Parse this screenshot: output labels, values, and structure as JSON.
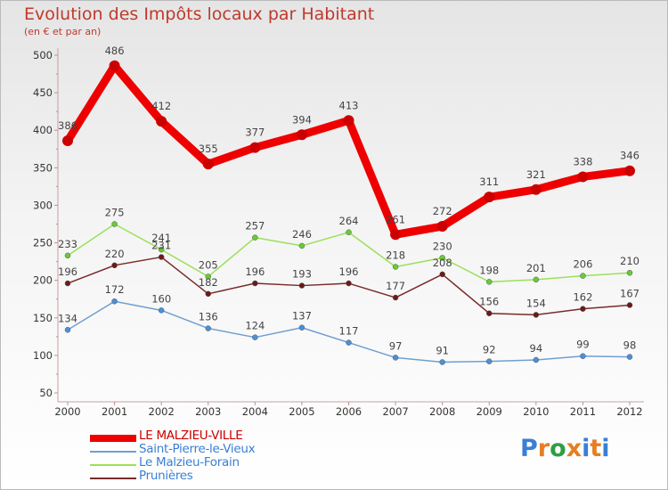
{
  "title": "Evolution des Impôts locaux par Habitant",
  "subtitle": "(en € et par an)",
  "brand": {
    "text": "Proxiti",
    "colors": [
      "#3a7fd5",
      "#e67e22",
      "#2e9e45",
      "#e67e22",
      "#3a7fd5",
      "#e67e22",
      "#3a7fd5"
    ]
  },
  "chart_data": {
    "type": "line",
    "x": [
      "2000",
      "2001",
      "2002",
      "2003",
      "2004",
      "2005",
      "2006",
      "2007",
      "2008",
      "2009",
      "2010",
      "2011",
      "2012"
    ],
    "ylim": [
      50,
      500
    ],
    "yticks": [
      "50",
      "100",
      "150",
      "200",
      "250",
      "300",
      "350",
      "400",
      "450",
      "500"
    ],
    "grid": false,
    "legend_position": "bottom-left",
    "series": [
      {
        "name": "LE MALZIEU-VILLE",
        "color": "#ee0000",
        "marker": "#cc0000",
        "width": 9,
        "values": [
          386,
          486,
          412,
          355,
          377,
          394,
          413,
          261,
          272,
          311,
          321,
          338,
          346
        ]
      },
      {
        "name": "Saint-Pierre-le-Vieux",
        "color": "#6f9fd2",
        "marker": "#4a90d9",
        "width": 1.5,
        "values": [
          134,
          172,
          160,
          136,
          124,
          137,
          117,
          97,
          91,
          92,
          94,
          99,
          98
        ]
      },
      {
        "name": "Le Malzieu-Forain",
        "color": "#9be05a",
        "marker": "#66cc33",
        "width": 1.5,
        "values": [
          233,
          275,
          241,
          205,
          257,
          246,
          264,
          218,
          230,
          198,
          201,
          206,
          210
        ]
      },
      {
        "name": "Prunières",
        "color": "#7a2a2a",
        "marker": "#6b1a1a",
        "width": 1.5,
        "values": [
          196,
          220,
          231,
          182,
          196,
          193,
          196,
          177,
          208,
          156,
          154,
          162,
          167
        ]
      }
    ]
  }
}
